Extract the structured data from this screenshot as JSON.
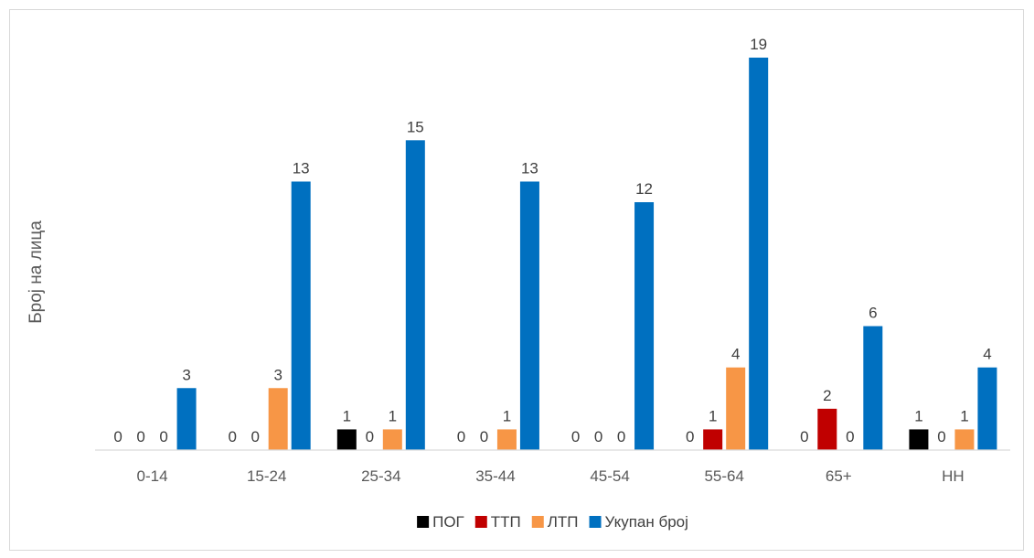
{
  "chart_data": {
    "type": "bar",
    "categories": [
      "0-14",
      "15-24",
      "25-34",
      "35-44",
      "45-54",
      "55-64",
      "65+",
      "НН"
    ],
    "series": [
      {
        "name": "ПОГ",
        "color": "#000000",
        "values": [
          0,
          0,
          1,
          0,
          0,
          0,
          0,
          1
        ]
      },
      {
        "name": "ТТП",
        "color": "#c00000",
        "values": [
          0,
          0,
          0,
          0,
          0,
          1,
          2,
          0
        ]
      },
      {
        "name": "ЛТП",
        "color": "#f79646",
        "values": [
          0,
          3,
          1,
          1,
          0,
          4,
          0,
          1
        ]
      },
      {
        "name": "Укупан број",
        "color": "#0070c0",
        "values": [
          3,
          13,
          15,
          13,
          12,
          19,
          6,
          4
        ]
      }
    ],
    "title": "",
    "xlabel": "",
    "ylabel": "Број на лица",
    "ylim": [
      0,
      19
    ],
    "grid": false,
    "legend_position": "bottom"
  }
}
